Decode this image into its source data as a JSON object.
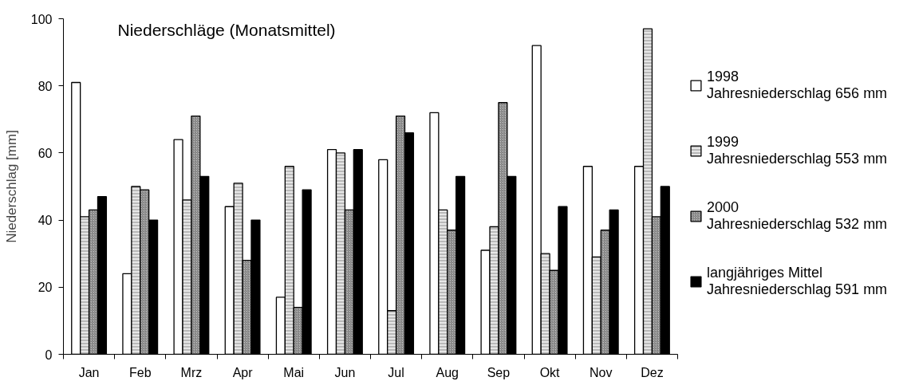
{
  "chart_data": {
    "type": "bar",
    "title": "Niederschläge (Monatsmittel)",
    "ylabel": "Niederschlag [mm]",
    "categories": [
      "Jan",
      "Feb",
      "Mrz",
      "Apr",
      "Mai",
      "Jun",
      "Jul",
      "Aug",
      "Sep",
      "Okt",
      "Nov",
      "Dez"
    ],
    "series": [
      {
        "name": "1998\nJahresniederschlag 656 mm",
        "color": "#ffffff",
        "values": [
          81,
          24,
          64,
          44,
          17,
          61,
          58,
          72,
          31,
          92,
          56,
          56
        ]
      },
      {
        "name": "1999\nJahresniederschlag 553 mm",
        "color": "#e6e6e6",
        "values": [
          41,
          50,
          46,
          51,
          56,
          60,
          13,
          43,
          38,
          30,
          29,
          97
        ]
      },
      {
        "name": "2000\nJahresniederschlag 532 mm",
        "color": "#bdbdbd",
        "values": [
          43,
          49,
          71,
          28,
          14,
          43,
          71,
          37,
          75,
          25,
          37,
          41
        ]
      },
      {
        "name": "langjähriges Mittel\nJahresniederschlag 591 mm",
        "color": "#000000",
        "values": [
          47,
          40,
          53,
          40,
          49,
          61,
          66,
          53,
          53,
          44,
          43,
          50
        ]
      }
    ],
    "ylim": [
      0,
      100
    ],
    "yticks": [
      0,
      20,
      40,
      60,
      80,
      100
    ],
    "grid": false,
    "legend": "right"
  }
}
